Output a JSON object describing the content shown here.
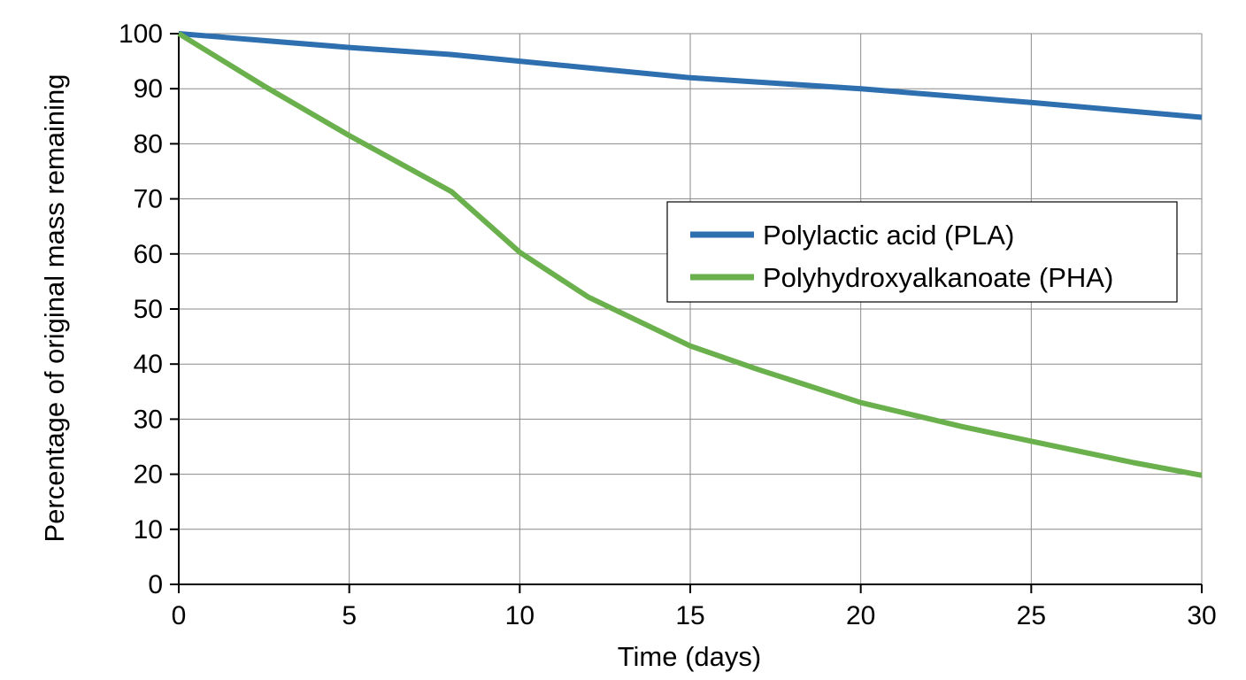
{
  "chart_data": {
    "type": "line",
    "title": "",
    "xlabel": "Time (days)",
    "ylabel": "Percentage of original mass remaining",
    "xlim": [
      0,
      30
    ],
    "ylim": [
      0,
      100
    ],
    "x_ticks": [
      0,
      5,
      10,
      15,
      20,
      25,
      30
    ],
    "y_ticks": [
      0,
      10,
      20,
      30,
      40,
      50,
      60,
      70,
      80,
      90,
      100
    ],
    "grid": true,
    "legend_position": "upper-right",
    "series": [
      {
        "name": "Polylactic acid (PLA)",
        "color": "#2e6fb0",
        "x": [
          0,
          5,
          8,
          10,
          12,
          15,
          20,
          25,
          30
        ],
        "y": [
          100,
          97.5,
          96.2,
          95,
          93.8,
          92,
          90,
          87.5,
          84.8
        ]
      },
      {
        "name": "Polyhydroxyalkanoate (PHA)",
        "color": "#6ab04c",
        "x": [
          0,
          2.5,
          5,
          8,
          10,
          12,
          15,
          17,
          20,
          23,
          25,
          28,
          30
        ],
        "y": [
          100,
          90.5,
          81.5,
          71.3,
          60.3,
          52.2,
          43.3,
          39,
          33,
          28.6,
          26,
          22.1,
          19.8
        ]
      }
    ]
  }
}
